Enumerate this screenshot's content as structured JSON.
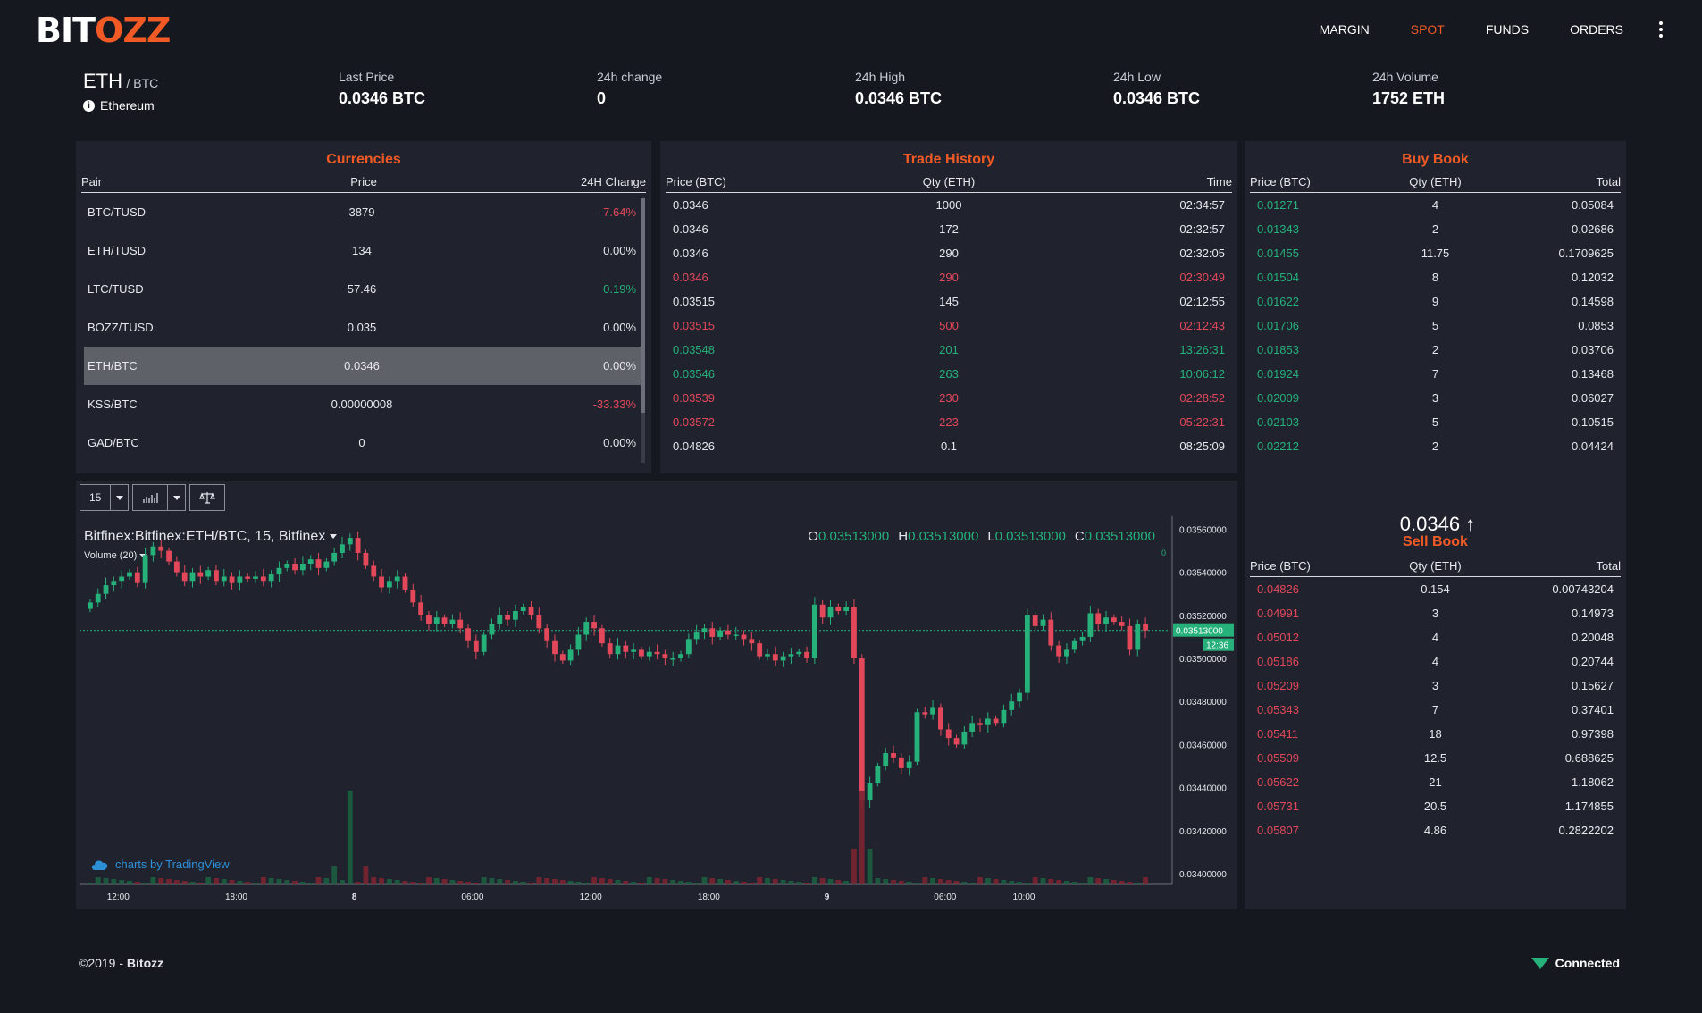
{
  "logo": {
    "part1": "BIT",
    "part2": "OZZ"
  },
  "nav": {
    "margin": "MARGIN",
    "spot": "SPOT",
    "funds": "FUNDS",
    "orders": "ORDERS"
  },
  "pair": {
    "base": "ETH",
    "quote": "/ BTC",
    "coin_name": "Ethereum"
  },
  "stats": {
    "last_price_label": "Last Price",
    "last_price": "0.0346 BTC",
    "change_label": "24h change",
    "change": "0",
    "high_label": "24h High",
    "high": "0.0346 BTC",
    "low_label": "24h Low",
    "low": "0.0346 BTC",
    "volume_label": "24h Volume",
    "volume": "1752 ETH"
  },
  "currencies": {
    "title": "Currencies",
    "headers": [
      "Pair",
      "Price",
      "24H Change"
    ],
    "rows": [
      {
        "pair": "BTC/TUSD",
        "price": "3879",
        "change": "-7.64%",
        "dir": "down"
      },
      {
        "pair": "ETH/TUSD",
        "price": "134",
        "change": "0.00%",
        "dir": "flat"
      },
      {
        "pair": "LTC/TUSD",
        "price": "57.46",
        "change": "0.19%",
        "dir": "up"
      },
      {
        "pair": "BOZZ/TUSD",
        "price": "0.035",
        "change": "0.00%",
        "dir": "flat"
      },
      {
        "pair": "ETH/BTC",
        "price": "0.0346",
        "change": "0.00%",
        "dir": "flat",
        "selected": true
      },
      {
        "pair": "KSS/BTC",
        "price": "0.00000008",
        "change": "-33.33%",
        "dir": "down"
      },
      {
        "pair": "GAD/BTC",
        "price": "0",
        "change": "0.00%",
        "dir": "flat"
      }
    ]
  },
  "trade_history": {
    "title": "Trade History",
    "headers": [
      "Price (BTC)",
      "Qty (ETH)",
      "Time"
    ],
    "rows": [
      {
        "price": "0.0346",
        "qty": "1000",
        "time": "02:34:57",
        "side": "neutral"
      },
      {
        "price": "0.0346",
        "qty": "172",
        "time": "02:32:57",
        "side": "neutral"
      },
      {
        "price": "0.0346",
        "qty": "290",
        "time": "02:32:05",
        "side": "neutral"
      },
      {
        "price": "0.0346",
        "qty": "290",
        "time": "02:30:49",
        "side": "sell"
      },
      {
        "price": "0.03515",
        "qty": "145",
        "time": "02:12:55",
        "side": "neutral"
      },
      {
        "price": "0.03515",
        "qty": "500",
        "time": "02:12:43",
        "side": "sell"
      },
      {
        "price": "0.03548",
        "qty": "201",
        "time": "13:26:31",
        "side": "buy"
      },
      {
        "price": "0.03546",
        "qty": "263",
        "time": "10:06:12",
        "side": "buy"
      },
      {
        "price": "0.03539",
        "qty": "230",
        "time": "02:28:52",
        "side": "sell"
      },
      {
        "price": "0.03572",
        "qty": "223",
        "time": "05:22:31",
        "side": "sell"
      },
      {
        "price": "0.04826",
        "qty": "0.1",
        "time": "08:25:09",
        "side": "neutral"
      }
    ]
  },
  "buy_book": {
    "title": "Buy Book",
    "headers": [
      "Price (BTC)",
      "Qty (ETH)",
      "Total"
    ],
    "rows": [
      {
        "price": "0.01271",
        "qty": "4",
        "total": "0.05084"
      },
      {
        "price": "0.01343",
        "qty": "2",
        "total": "0.02686"
      },
      {
        "price": "0.01455",
        "qty": "11.75",
        "total": "0.1709625"
      },
      {
        "price": "0.01504",
        "qty": "8",
        "total": "0.12032"
      },
      {
        "price": "0.01622",
        "qty": "9",
        "total": "0.14598"
      },
      {
        "price": "0.01706",
        "qty": "5",
        "total": "0.0853"
      },
      {
        "price": "0.01853",
        "qty": "2",
        "total": "0.03706"
      },
      {
        "price": "0.01924",
        "qty": "7",
        "total": "0.13468"
      },
      {
        "price": "0.02009",
        "qty": "3",
        "total": "0.06027"
      },
      {
        "price": "0.02103",
        "qty": "5",
        "total": "0.10515"
      },
      {
        "price": "0.02212",
        "qty": "2",
        "total": "0.04424"
      }
    ]
  },
  "last_trade": {
    "price": "0.0346",
    "arrow": "↑"
  },
  "sell_book": {
    "title": "Sell Book",
    "headers": [
      "Price (BTC)",
      "Qty (ETH)",
      "Total"
    ],
    "rows": [
      {
        "price": "0.04826",
        "qty": "0.154",
        "total": "0.00743204"
      },
      {
        "price": "0.04991",
        "qty": "3",
        "total": "0.14973"
      },
      {
        "price": "0.05012",
        "qty": "4",
        "total": "0.20048"
      },
      {
        "price": "0.05186",
        "qty": "4",
        "total": "0.20744"
      },
      {
        "price": "0.05209",
        "qty": "3",
        "total": "0.15627"
      },
      {
        "price": "0.05343",
        "qty": "7",
        "total": "0.37401"
      },
      {
        "price": "0.05411",
        "qty": "18",
        "total": "0.97398"
      },
      {
        "price": "0.05509",
        "qty": "12.5",
        "total": "0.688625"
      },
      {
        "price": "0.05622",
        "qty": "21",
        "total": "1.18062"
      },
      {
        "price": "0.05731",
        "qty": "20.5",
        "total": "1.174855"
      },
      {
        "price": "0.05807",
        "qty": "4.86",
        "total": "0.2822202"
      }
    ]
  },
  "chart": {
    "interval": "15",
    "title": "Bitfinex:Bitfinex:ETH/BTC, 15, Bitfinex",
    "volume_label": "Volume (20)",
    "volume_value": "0",
    "ohlc": {
      "o_label": "O",
      "o": "0.03513000",
      "h_label": "H",
      "h": "0.03513000",
      "l_label": "L",
      "l": "0.03513000",
      "c_label": "C",
      "c": "0.03513000"
    },
    "credit": "charts by TradingView",
    "price_ticks": [
      "0.03560000",
      "0.03540000",
      "0.03520000",
      "0.03500000",
      "0.03480000",
      "0.03460000",
      "0.03440000",
      "0.03420000",
      "0.03400000"
    ],
    "current_price": "0.03513000",
    "countdown": "12:36",
    "time_ticks": [
      "12:00",
      "18:00",
      "8",
      "06:00",
      "12:00",
      "18:00",
      "9",
      "06:00",
      "10:00"
    ],
    "colors": {
      "up": "#26b07a",
      "down": "#e2485a"
    }
  },
  "chart_data": {
    "type": "candlestick",
    "title": "Bitfinex:Bitfinex:ETH/BTC, 15, Bitfinex",
    "y_range": [
      0.03395,
      0.03566
    ],
    "x_ticks": [
      "12:00",
      "18:00",
      "8",
      "06:00",
      "12:00",
      "18:00",
      "9",
      "06:00",
      "10:00"
    ],
    "close": [
      0.03526,
      0.0353,
      0.03534,
      0.03536,
      0.03538,
      0.0354,
      0.03535,
      0.03548,
      0.03552,
      0.0355,
      0.03545,
      0.0354,
      0.03536,
      0.0354,
      0.03538,
      0.03541,
      0.03536,
      0.03538,
      0.03535,
      0.03538,
      0.03537,
      0.03538,
      0.03536,
      0.03539,
      0.03542,
      0.03544,
      0.03541,
      0.03544,
      0.03546,
      0.03542,
      0.03545,
      0.03549,
      0.03553,
      0.03556,
      0.03549,
      0.03543,
      0.03538,
      0.03533,
      0.03536,
      0.03538,
      0.03532,
      0.03526,
      0.0352,
      0.03516,
      0.03519,
      0.03516,
      0.03518,
      0.03514,
      0.03508,
      0.03503,
      0.03511,
      0.03516,
      0.0352,
      0.03518,
      0.03522,
      0.03524,
      0.0352,
      0.03514,
      0.03508,
      0.03502,
      0.03499,
      0.03504,
      0.03511,
      0.03517,
      0.03514,
      0.03507,
      0.03502,
      0.03506,
      0.03503,
      0.03504,
      0.03501,
      0.03503,
      0.03502,
      0.035,
      0.035,
      0.03502,
      0.03509,
      0.03512,
      0.03514,
      0.0351,
      0.03513,
      0.03511,
      0.03511,
      0.03509,
      0.03507,
      0.03501,
      0.03502,
      0.03499,
      0.03501,
      0.03502,
      0.03503,
      0.035,
      0.03525,
      0.03519,
      0.03524,
      0.03522,
      0.03524,
      0.035,
      0.03434,
      0.03442,
      0.0345,
      0.03456,
      0.03454,
      0.03449,
      0.03452,
      0.03475,
      0.03474,
      0.03477,
      0.03467,
      0.03463,
      0.0346,
      0.03466,
      0.0347,
      0.03469,
      0.03472,
      0.0347,
      0.03476,
      0.0348,
      0.03484,
      0.0352,
      0.03515,
      0.03518,
      0.03506,
      0.03501,
      0.03504,
      0.03508,
      0.0351,
      0.03521,
      0.03516,
      0.03519,
      0.03517,
      0.03515,
      0.03504,
      0.03516,
      0.03513
    ],
    "volume_spikes": [
      {
        "time_index": 33,
        "note": "large green"
      },
      {
        "time_index": 98,
        "note": "large red"
      }
    ]
  },
  "footer": {
    "copyright": "©2019 - ",
    "brand": "Bitozz",
    "status": "Connected"
  }
}
